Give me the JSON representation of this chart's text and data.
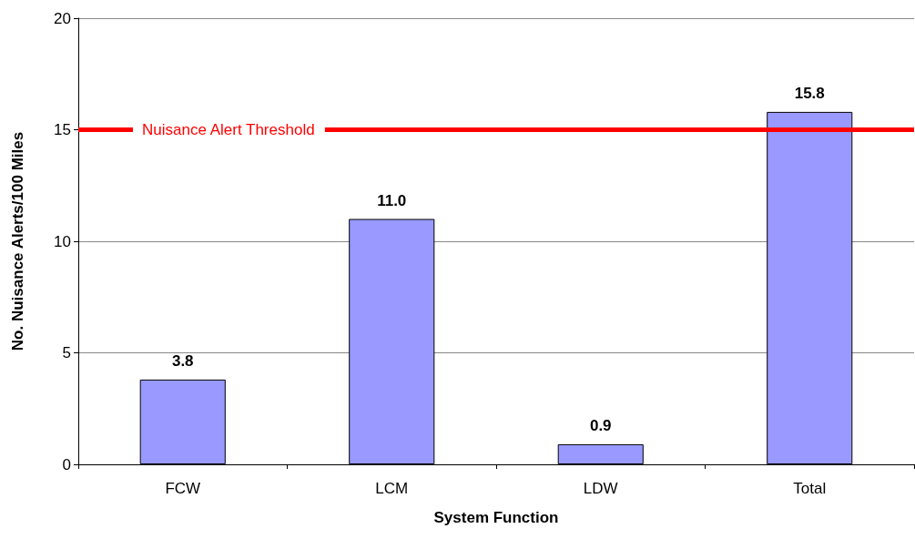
{
  "chart_data": {
    "type": "bar",
    "xlabel": "System Function",
    "ylabel": "No. Nuisance Alerts/100 Miles",
    "categories": [
      "FCW",
      "LCM",
      "LDW",
      "Total"
    ],
    "values": [
      3.8,
      11.0,
      0.9,
      15.8
    ],
    "value_labels": [
      "3.8",
      "11.0",
      "0.9",
      "15.8"
    ],
    "color": "#9999ff",
    "ylim": [
      0,
      20
    ],
    "yticks": [
      0,
      5,
      10,
      15,
      20
    ],
    "grid": "y",
    "ref_lines": [
      {
        "axis": "y",
        "value": 15,
        "label": "Nuisance Alert Threshold",
        "color": "#ff0000"
      }
    ]
  }
}
